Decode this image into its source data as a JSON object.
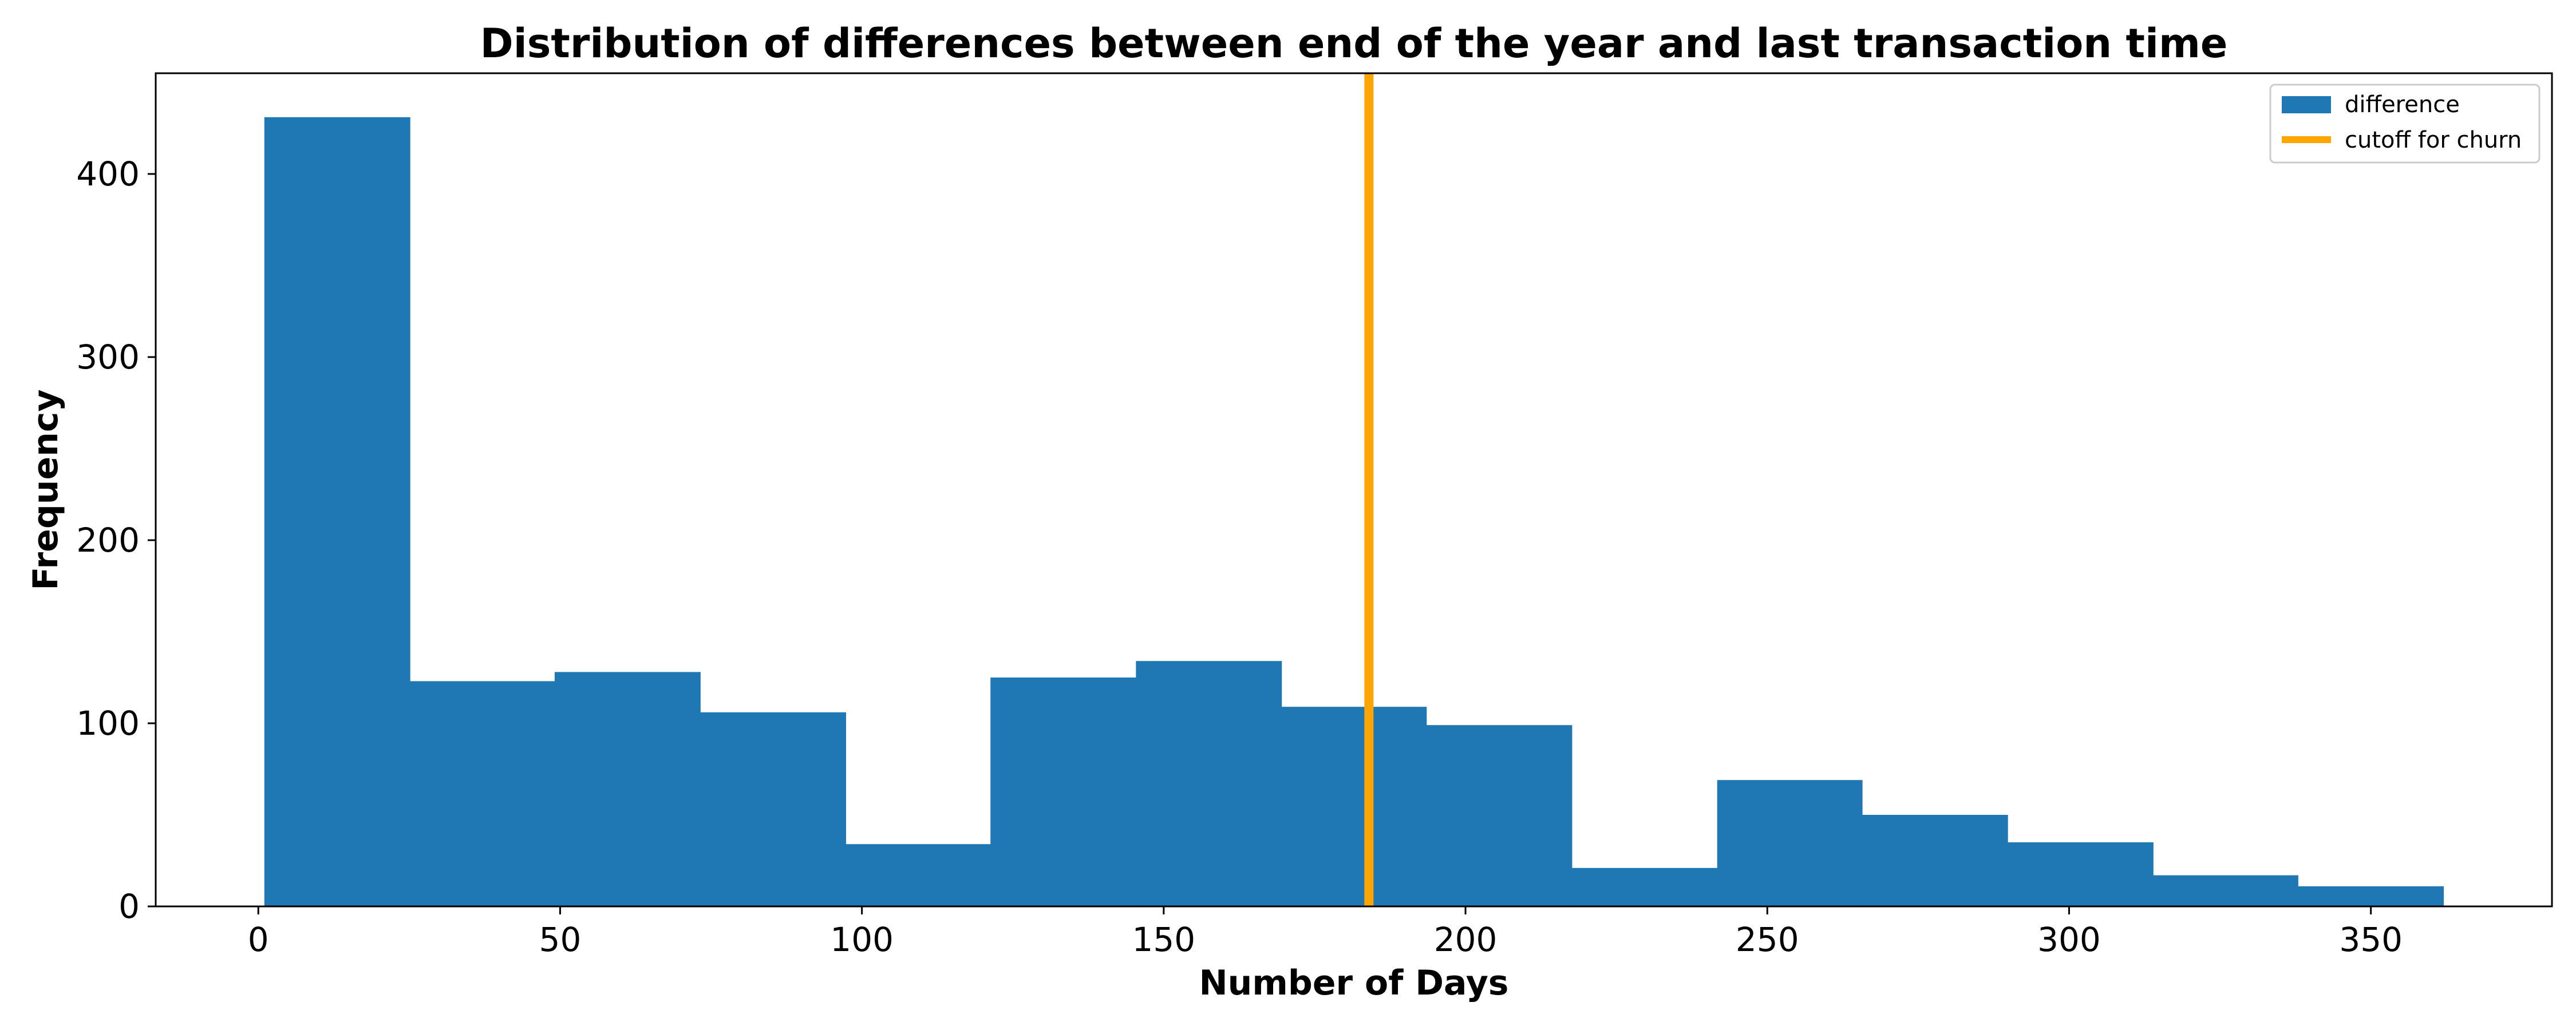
{
  "chart_data": {
    "type": "bar",
    "title": "Distribution of differences between end of the year and last transaction time",
    "xlabel": "Number of Days",
    "ylabel": "Frequency",
    "xlim": [
      -17,
      380
    ],
    "ylim": [
      0,
      455
    ],
    "x_ticks": [
      0,
      50,
      100,
      150,
      200,
      250,
      300,
      350
    ],
    "y_ticks": [
      0,
      100,
      200,
      300,
      400
    ],
    "bin_edges": [
      1,
      25.1,
      49.1,
      73.2,
      97.3,
      121.3,
      145.4,
      169.5,
      193.5,
      217.6,
      241.7,
      265.7,
      289.8,
      313.9,
      337.9,
      362
    ],
    "counts": [
      431,
      123,
      128,
      106,
      34,
      125,
      134,
      109,
      99,
      21,
      69,
      50,
      35,
      17,
      11
    ],
    "bar_color": "#1f77b4",
    "cutoff": {
      "x": 184,
      "color": "#ffa500"
    },
    "legend": {
      "placement": "top-right",
      "entries": [
        {
          "label": "difference",
          "color": "#1f77b4",
          "kind": "patch"
        },
        {
          "label": "cutoff for churn",
          "color": "#ffa500",
          "kind": "line"
        }
      ]
    }
  }
}
